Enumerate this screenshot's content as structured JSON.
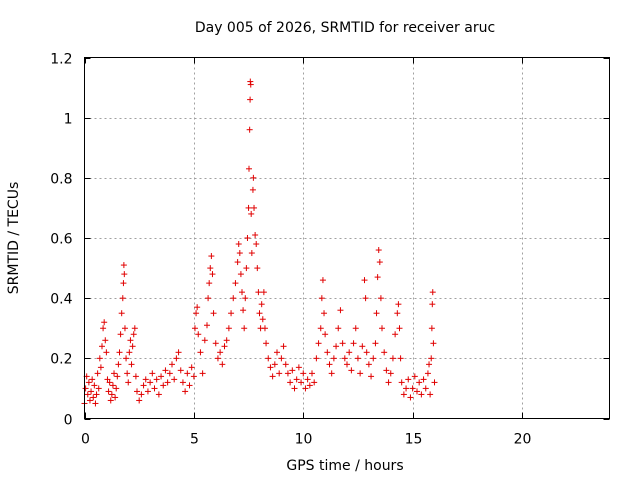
{
  "chart_data": {
    "type": "scatter",
    "title": "Day 005 of 2026, SRMTID for receiver aruc",
    "xlabel": "GPS time / hours",
    "ylabel": "SRMTID / TECUs",
    "xlim": [
      0,
      24
    ],
    "ylim": [
      0,
      1.2
    ],
    "x_ticks": [
      0,
      5,
      10,
      15,
      20
    ],
    "y_ticks": [
      0,
      0.2,
      0.4,
      0.6,
      0.8,
      1,
      1.2
    ],
    "x_tick_labels": [
      "0",
      "5",
      "10",
      "15",
      "20"
    ],
    "y_tick_labels": [
      "0",
      "0.2",
      "0.4",
      "0.6",
      "0.8",
      "1",
      "1.2"
    ],
    "grid": true,
    "marker": "+",
    "color": "#e00000",
    "series": [
      {
        "name": "aruc",
        "points": [
          [
            0.0,
            0.05
          ],
          [
            0.05,
            0.1
          ],
          [
            0.1,
            0.14
          ],
          [
            0.15,
            0.08
          ],
          [
            0.2,
            0.12
          ],
          [
            0.25,
            0.06
          ],
          [
            0.3,
            0.09
          ],
          [
            0.35,
            0.13
          ],
          [
            0.4,
            0.07
          ],
          [
            0.45,
            0.11
          ],
          [
            0.5,
            0.05
          ],
          [
            0.55,
            0.08
          ],
          [
            0.6,
            0.15
          ],
          [
            0.65,
            0.1
          ],
          [
            0.7,
            0.2
          ],
          [
            0.75,
            0.17
          ],
          [
            0.8,
            0.24
          ],
          [
            0.85,
            0.3
          ],
          [
            0.9,
            0.32
          ],
          [
            0.95,
            0.26
          ],
          [
            1.0,
            0.22
          ],
          [
            1.05,
            0.13
          ],
          [
            1.1,
            0.09
          ],
          [
            1.15,
            0.12
          ],
          [
            1.2,
            0.06
          ],
          [
            1.25,
            0.08
          ],
          [
            1.3,
            0.11
          ],
          [
            1.35,
            0.15
          ],
          [
            1.4,
            0.07
          ],
          [
            1.45,
            0.1
          ],
          [
            1.5,
            0.14
          ],
          [
            1.55,
            0.18
          ],
          [
            1.6,
            0.22
          ],
          [
            1.65,
            0.28
          ],
          [
            1.7,
            0.35
          ],
          [
            1.75,
            0.4
          ],
          [
            1.78,
            0.45
          ],
          [
            1.8,
            0.51
          ],
          [
            1.82,
            0.48
          ],
          [
            1.85,
            0.3
          ],
          [
            1.9,
            0.2
          ],
          [
            1.95,
            0.15
          ],
          [
            2.0,
            0.12
          ],
          [
            2.05,
            0.22
          ],
          [
            2.1,
            0.26
          ],
          [
            2.15,
            0.18
          ],
          [
            2.2,
            0.24
          ],
          [
            2.25,
            0.28
          ],
          [
            2.3,
            0.3
          ],
          [
            2.35,
            0.14
          ],
          [
            2.4,
            0.09
          ],
          [
            2.5,
            0.06
          ],
          [
            2.6,
            0.08
          ],
          [
            2.7,
            0.11
          ],
          [
            2.8,
            0.13
          ],
          [
            2.9,
            0.09
          ],
          [
            3.0,
            0.12
          ],
          [
            3.1,
            0.15
          ],
          [
            3.2,
            0.1
          ],
          [
            3.3,
            0.13
          ],
          [
            3.4,
            0.08
          ],
          [
            3.5,
            0.14
          ],
          [
            3.6,
            0.11
          ],
          [
            3.7,
            0.16
          ],
          [
            3.8,
            0.12
          ],
          [
            3.9,
            0.15
          ],
          [
            4.0,
            0.18
          ],
          [
            4.1,
            0.13
          ],
          [
            4.2,
            0.2
          ],
          [
            4.3,
            0.22
          ],
          [
            4.4,
            0.16
          ],
          [
            4.5,
            0.12
          ],
          [
            4.6,
            0.09
          ],
          [
            4.7,
            0.15
          ],
          [
            4.8,
            0.11
          ],
          [
            4.9,
            0.17
          ],
          [
            5.0,
            0.14
          ],
          [
            5.05,
            0.3
          ],
          [
            5.1,
            0.35
          ],
          [
            5.15,
            0.37
          ],
          [
            5.2,
            0.28
          ],
          [
            5.3,
            0.22
          ],
          [
            5.4,
            0.15
          ],
          [
            5.5,
            0.26
          ],
          [
            5.6,
            0.31
          ],
          [
            5.65,
            0.4
          ],
          [
            5.7,
            0.45
          ],
          [
            5.75,
            0.5
          ],
          [
            5.8,
            0.54
          ],
          [
            5.85,
            0.48
          ],
          [
            5.9,
            0.35
          ],
          [
            6.0,
            0.25
          ],
          [
            6.1,
            0.2
          ],
          [
            6.2,
            0.22
          ],
          [
            6.3,
            0.18
          ],
          [
            6.4,
            0.24
          ],
          [
            6.5,
            0.26
          ],
          [
            6.6,
            0.3
          ],
          [
            6.7,
            0.35
          ],
          [
            6.8,
            0.4
          ],
          [
            6.9,
            0.45
          ],
          [
            7.0,
            0.52
          ],
          [
            7.05,
            0.58
          ],
          [
            7.1,
            0.55
          ],
          [
            7.15,
            0.48
          ],
          [
            7.2,
            0.42
          ],
          [
            7.25,
            0.36
          ],
          [
            7.3,
            0.3
          ],
          [
            7.35,
            0.4
          ],
          [
            7.4,
            0.5
          ],
          [
            7.45,
            0.6
          ],
          [
            7.5,
            0.7
          ],
          [
            7.52,
            0.83
          ],
          [
            7.55,
            0.96
          ],
          [
            7.57,
            1.06
          ],
          [
            7.58,
            1.12
          ],
          [
            7.6,
            1.11
          ],
          [
            7.62,
            0.68
          ],
          [
            7.65,
            0.55
          ],
          [
            7.7,
            0.76
          ],
          [
            7.72,
            0.8
          ],
          [
            7.75,
            0.7
          ],
          [
            7.8,
            0.61
          ],
          [
            7.85,
            0.58
          ],
          [
            7.9,
            0.5
          ],
          [
            7.95,
            0.42
          ],
          [
            8.0,
            0.35
          ],
          [
            8.05,
            0.3
          ],
          [
            8.1,
            0.38
          ],
          [
            8.15,
            0.33
          ],
          [
            8.2,
            0.42
          ],
          [
            8.25,
            0.3
          ],
          [
            8.3,
            0.25
          ],
          [
            8.4,
            0.2
          ],
          [
            8.5,
            0.17
          ],
          [
            8.6,
            0.14
          ],
          [
            8.7,
            0.18
          ],
          [
            8.8,
            0.22
          ],
          [
            8.9,
            0.15
          ],
          [
            9.0,
            0.2
          ],
          [
            9.1,
            0.24
          ],
          [
            9.2,
            0.18
          ],
          [
            9.3,
            0.15
          ],
          [
            9.4,
            0.12
          ],
          [
            9.5,
            0.16
          ],
          [
            9.6,
            0.1
          ],
          [
            9.7,
            0.13
          ],
          [
            9.8,
            0.17
          ],
          [
            9.9,
            0.12
          ],
          [
            10.0,
            0.15
          ],
          [
            10.1,
            0.1
          ],
          [
            10.2,
            0.13
          ],
          [
            10.3,
            0.11
          ],
          [
            10.4,
            0.15
          ],
          [
            10.5,
            0.12
          ],
          [
            10.6,
            0.2
          ],
          [
            10.7,
            0.25
          ],
          [
            10.8,
            0.3
          ],
          [
            10.85,
            0.4
          ],
          [
            10.9,
            0.46
          ],
          [
            10.95,
            0.35
          ],
          [
            11.0,
            0.28
          ],
          [
            11.1,
            0.22
          ],
          [
            11.2,
            0.18
          ],
          [
            11.3,
            0.15
          ],
          [
            11.4,
            0.2
          ],
          [
            11.5,
            0.24
          ],
          [
            11.6,
            0.3
          ],
          [
            11.7,
            0.36
          ],
          [
            11.8,
            0.25
          ],
          [
            11.9,
            0.2
          ],
          [
            12.0,
            0.18
          ],
          [
            12.1,
            0.22
          ],
          [
            12.2,
            0.16
          ],
          [
            12.3,
            0.25
          ],
          [
            12.4,
            0.3
          ],
          [
            12.5,
            0.2
          ],
          [
            12.6,
            0.15
          ],
          [
            12.7,
            0.24
          ],
          [
            12.8,
            0.46
          ],
          [
            12.85,
            0.4
          ],
          [
            12.9,
            0.22
          ],
          [
            13.0,
            0.18
          ],
          [
            13.1,
            0.14
          ],
          [
            13.2,
            0.2
          ],
          [
            13.3,
            0.25
          ],
          [
            13.35,
            0.35
          ],
          [
            13.4,
            0.47
          ],
          [
            13.45,
            0.56
          ],
          [
            13.5,
            0.52
          ],
          [
            13.55,
            0.4
          ],
          [
            13.6,
            0.3
          ],
          [
            13.7,
            0.22
          ],
          [
            13.8,
            0.16
          ],
          [
            13.9,
            0.12
          ],
          [
            14.0,
            0.15
          ],
          [
            14.1,
            0.2
          ],
          [
            14.2,
            0.28
          ],
          [
            14.3,
            0.35
          ],
          [
            14.35,
            0.38
          ],
          [
            14.4,
            0.3
          ],
          [
            14.45,
            0.2
          ],
          [
            14.5,
            0.12
          ],
          [
            14.6,
            0.08
          ],
          [
            14.7,
            0.1
          ],
          [
            14.8,
            0.13
          ],
          [
            14.9,
            0.07
          ],
          [
            15.0,
            0.1
          ],
          [
            15.1,
            0.14
          ],
          [
            15.2,
            0.09
          ],
          [
            15.3,
            0.12
          ],
          [
            15.4,
            0.08
          ],
          [
            15.5,
            0.13
          ],
          [
            15.6,
            0.1
          ],
          [
            15.7,
            0.15
          ],
          [
            15.75,
            0.18
          ],
          [
            15.8,
            0.08
          ],
          [
            15.85,
            0.2
          ],
          [
            15.88,
            0.3
          ],
          [
            15.9,
            0.38
          ],
          [
            15.92,
            0.42
          ],
          [
            15.95,
            0.25
          ],
          [
            16.0,
            0.12
          ]
        ]
      }
    ]
  }
}
